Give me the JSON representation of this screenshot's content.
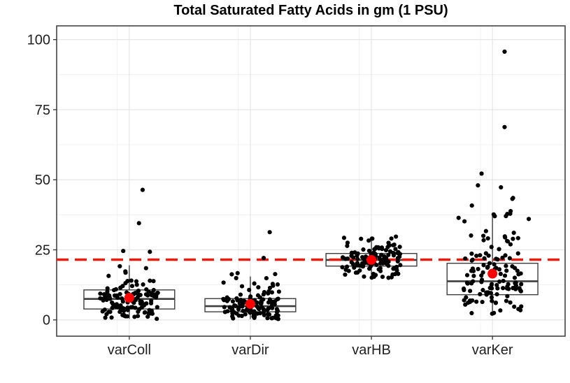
{
  "chart_data": {
    "type": "boxplot-jitter",
    "title": "Total Saturated Fatty Acids in gm (1 PSU)",
    "xlabel": "",
    "ylabel": "",
    "categories": [
      "varColl",
      "varDir",
      "varHB",
      "varKer"
    ],
    "y_ticks": [
      0,
      25,
      50,
      75,
      100
    ],
    "y_tick_labels": [
      "0",
      "25",
      "50",
      "75",
      "100"
    ],
    "ylim": [
      -5.8,
      104.9
    ],
    "grid": {
      "major": true,
      "minor": true
    },
    "legend": "none",
    "threshold_line": {
      "value": 21.5,
      "color": "#EE1A0E",
      "style": "dashed",
      "width": 3.6
    },
    "jitter_width": 0.24,
    "groups": [
      {
        "label": "varColl",
        "box": {
          "q1": 3.9,
          "median": 7.5,
          "q3": 10.7,
          "whisker_low": 0.4,
          "whisker_high": 19.5
        },
        "mean": 7.9,
        "n_points": 125,
        "seed": 101,
        "quantile_knots": [
          [
            0,
            0.3
          ],
          [
            0.1,
            2.2
          ],
          [
            0.25,
            3.9
          ],
          [
            0.5,
            7.5
          ],
          [
            0.75,
            10.7
          ],
          [
            0.9,
            14.0
          ],
          [
            0.97,
            18.0
          ],
          [
            1,
            22.0
          ]
        ],
        "extra_points": [
          [
            0.11,
            46.4
          ],
          [
            0.08,
            34.5
          ],
          [
            -0.05,
            24.6
          ],
          [
            0.17,
            24.3
          ]
        ]
      },
      {
        "label": "varDir",
        "box": {
          "q1": 2.9,
          "median": 4.9,
          "q3": 7.6,
          "whisker_low": 0.3,
          "whisker_high": 15.5
        },
        "mean": 5.7,
        "n_points": 125,
        "seed": 202,
        "quantile_knots": [
          [
            0,
            0.2
          ],
          [
            0.1,
            1.4
          ],
          [
            0.25,
            2.9
          ],
          [
            0.5,
            4.9
          ],
          [
            0.75,
            7.6
          ],
          [
            0.9,
            10.5
          ],
          [
            0.97,
            13.5
          ],
          [
            1,
            17.0
          ]
        ],
        "extra_points": [
          [
            0.16,
            31.3
          ],
          [
            0.11,
            22.1
          ]
        ]
      },
      {
        "label": "varHB",
        "box": {
          "q1": 19.2,
          "median": 21.4,
          "q3": 23.7,
          "whisker_low": 15.2,
          "whisker_high": 29.5
        },
        "mean": 21.4,
        "n_points": 130,
        "seed": 303,
        "quantile_knots": [
          [
            0,
            15.0
          ],
          [
            0.1,
            17.4
          ],
          [
            0.25,
            19.2
          ],
          [
            0.5,
            21.4
          ],
          [
            0.75,
            23.7
          ],
          [
            0.9,
            25.6
          ],
          [
            0.97,
            27.8
          ],
          [
            1,
            30.0
          ]
        ],
        "extra_points": []
      },
      {
        "label": "varKer",
        "box": {
          "q1": 9.0,
          "median": 13.8,
          "q3": 20.2,
          "whisker_low": 3.0,
          "whisker_high": 37.2
        },
        "mean": 16.5,
        "n_points": 130,
        "seed": 404,
        "quantile_knots": [
          [
            0,
            1.8
          ],
          [
            0.1,
            6.0
          ],
          [
            0.25,
            9.0
          ],
          [
            0.5,
            13.8
          ],
          [
            0.75,
            20.2
          ],
          [
            0.85,
            24.5
          ],
          [
            0.93,
            30.5
          ],
          [
            0.98,
            38.0
          ],
          [
            1,
            44.0
          ]
        ],
        "extra_points": [
          [
            0.1,
            95.7
          ],
          [
            0.1,
            68.8
          ],
          [
            -0.09,
            52.2
          ],
          [
            -0.12,
            48.0
          ],
          [
            0.07,
            47.3
          ],
          [
            0.17,
            43.5
          ],
          [
            -0.17,
            40.8
          ],
          [
            0.15,
            38.8
          ],
          [
            -0.28,
            36.4
          ],
          [
            0.3,
            36.0
          ]
        ]
      }
    ],
    "style": {
      "point_color": "#000000",
      "point_radius": 3.1,
      "mean_color": "#FF0000",
      "mean_radius": 7,
      "box_stroke": "#3d3d3d",
      "box_fill": "#ffffff",
      "grid_major": "#e3e3e3",
      "grid_minor": "#f1f1f1",
      "panel_border": "#444444",
      "tick_color": "#333333",
      "axis_text_color": "#1f1f1f",
      "background": "#ffffff"
    }
  }
}
